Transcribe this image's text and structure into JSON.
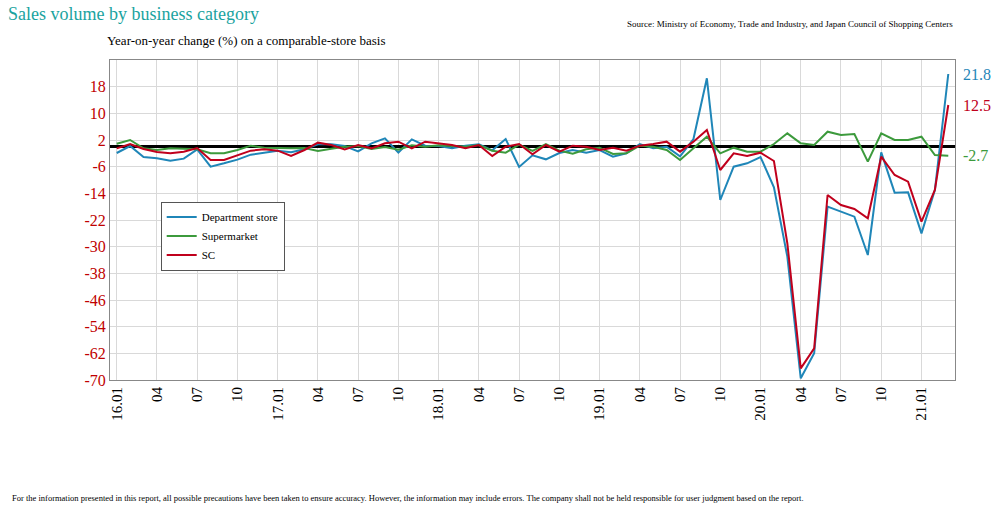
{
  "chart_data": {
    "type": "line",
    "title": "Sales volume by business category",
    "y_label": "Year-on-year change (%) on a comparable-store basis",
    "source": "Source: Ministry of Economy, Trade and Industry, and Japan Council of Shopping Centers",
    "note": "For the information presented in this report, all possible precautions have been taken to ensure accuracy. However, the information may include errors. The company shall not be held responsible for user judgment based on the report.",
    "categories": [
      "16.01",
      null,
      null,
      "04",
      null,
      null,
      "07",
      null,
      null,
      "10",
      null,
      null,
      "17.01",
      null,
      null,
      "04",
      null,
      null,
      "07",
      null,
      null,
      "10",
      null,
      null,
      "18.01",
      null,
      null,
      "04",
      null,
      null,
      "07",
      null,
      null,
      "10",
      null,
      null,
      "19.01",
      null,
      null,
      "04",
      null,
      null,
      "07",
      null,
      null,
      "10",
      null,
      null,
      "20.01",
      null,
      null,
      "04",
      null,
      null,
      "07",
      null,
      null,
      "10",
      null,
      null,
      "21.01",
      null,
      null
    ],
    "series": [
      {
        "name": "Department store",
        "color": "#1f86b8",
        "values": [
          -1.9,
          0.2,
          -3.1,
          -3.5,
          -4.2,
          -3.6,
          -0.8,
          -6.0,
          -5.0,
          -3.9,
          -2.4,
          -1.7,
          -1.2,
          -1.7,
          -0.8,
          0.7,
          0.7,
          0.2,
          -1.4,
          1.0,
          2.5,
          -1.8,
          2.2,
          0.3,
          0.2,
          -0.5,
          0.3,
          0.7,
          -1.1,
          2.3,
          -6.1,
          -2.6,
          -3.8,
          -1.9,
          -1.0,
          -1.8,
          -1.0,
          -3.0,
          -2.0,
          0.8,
          -0.5,
          0.0,
          -2.9,
          2.3,
          20.5,
          -16.0,
          -6.0,
          -5.0,
          -3.1,
          -12.2,
          -33.0,
          -69.5,
          -62.0,
          -18.0,
          -19.5,
          -21.0,
          -32.5,
          -1.7,
          -13.8,
          -13.7,
          -26.0,
          -13.0,
          21.8
        ]
      },
      {
        "name": "Supermarket",
        "color": "#3c9a3c",
        "values": [
          0.9,
          2.0,
          -0.5,
          -1.0,
          -0.5,
          -0.7,
          -0.8,
          -2.0,
          -2.0,
          -1.0,
          0.3,
          -0.3,
          -0.5,
          -0.5,
          -0.4,
          -1.3,
          -0.6,
          0.0,
          0.2,
          -0.7,
          -0.1,
          -0.9,
          0.4,
          0.0,
          0.4,
          0.3,
          0.0,
          0.5,
          -1.2,
          -1.8,
          0.6,
          -1.3,
          0.8,
          -1.2,
          -2.1,
          -0.8,
          -0.3,
          -2.2,
          -2.0,
          0.3,
          0.0,
          -1.0,
          -4.0,
          -0.5,
          3.0,
          -2.0,
          -0.3,
          -1.5,
          -1.5,
          0.8,
          4.0,
          1.0,
          0.5,
          4.5,
          3.5,
          3.8,
          -4.5,
          4.0,
          2.0,
          2.0,
          3.0,
          -2.5,
          -2.7
        ]
      },
      {
        "name": "SC",
        "color": "#c0001c",
        "values": [
          -0.5,
          0.8,
          -0.7,
          -1.6,
          -2.0,
          -1.5,
          -0.4,
          -4.0,
          -4.0,
          -2.5,
          -1.2,
          -0.8,
          -1.2,
          -2.8,
          -1.0,
          1.2,
          0.5,
          -0.8,
          0.5,
          -0.5,
          1.0,
          1.5,
          -0.5,
          1.5,
          1.0,
          0.5,
          -0.5,
          0.5,
          -2.8,
          0.0,
          0.8,
          -2.3,
          0.5,
          -1.5,
          0.3,
          0.0,
          -1.0,
          -0.3,
          -1.2,
          0.3,
          0.8,
          1.5,
          -1.5,
          1.5,
          5.0,
          -7.0,
          -2.0,
          -2.8,
          -1.8,
          -4.3,
          -29.0,
          -66.5,
          -60.5,
          -14.5,
          -17.5,
          -18.7,
          -21.5,
          -3.0,
          -8.5,
          -10.5,
          -22.5,
          -13.0,
          12.5
        ]
      }
    ],
    "ylim": [
      -70,
      26
    ],
    "yticks": [
      18,
      10,
      2,
      -6,
      -14,
      -22,
      -30,
      -38,
      -46,
      -54,
      -62,
      -70
    ],
    "grid": true,
    "legend": "left",
    "annotations": [
      {
        "text": "21.8",
        "series": "Department store"
      },
      {
        "text": "12.5",
        "series": "SC"
      },
      {
        "text": "-2.7",
        "series": "Supermarket"
      }
    ]
  }
}
